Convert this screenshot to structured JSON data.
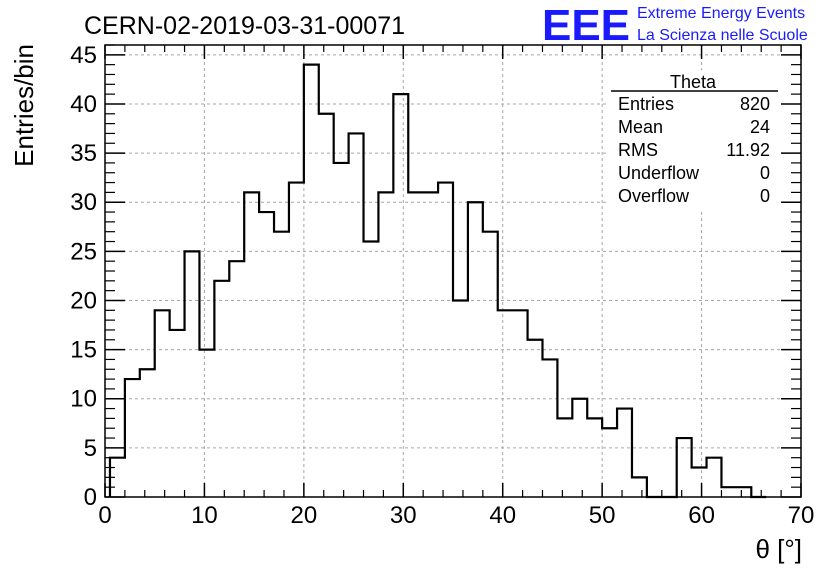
{
  "title": "CERN-02-2019-03-31-00071",
  "logo": {
    "mark": "EEE",
    "line1": "Extreme Energy Events",
    "line2": "La Scienza nelle Scuole",
    "color": "#1a1aff"
  },
  "stats": {
    "name": "Theta",
    "rows": [
      {
        "label": "Entries",
        "value": "820"
      },
      {
        "label": "Mean",
        "value": "24"
      },
      {
        "label": "RMS",
        "value": "11.92"
      },
      {
        "label": "Underflow",
        "value": "0"
      },
      {
        "label": "Overflow",
        "value": "0"
      }
    ]
  },
  "chart_data": {
    "type": "bar",
    "style": "step-histogram",
    "xlabel": "θ [°]",
    "ylabel": "Entries/bin",
    "xlim": [
      0,
      70
    ],
    "ylim": [
      0,
      46
    ],
    "grid": true,
    "bin_width": 1.5,
    "bins_start": 0.5,
    "x_ticks": [
      "0",
      "10",
      "20",
      "30",
      "40",
      "50",
      "60",
      "70"
    ],
    "y_ticks": [
      "0",
      "5",
      "10",
      "15",
      "20",
      "25",
      "30",
      "35",
      "40",
      "45"
    ],
    "values": [
      4,
      12,
      13,
      19,
      17,
      25,
      15,
      22,
      24,
      31,
      29,
      27,
      32,
      44,
      39,
      34,
      37,
      26,
      31,
      41,
      31,
      31,
      32,
      20,
      30,
      27,
      19,
      19,
      16,
      14,
      8,
      10,
      8,
      7,
      9,
      2,
      0,
      0,
      6,
      3,
      4,
      1,
      1,
      0
    ]
  }
}
